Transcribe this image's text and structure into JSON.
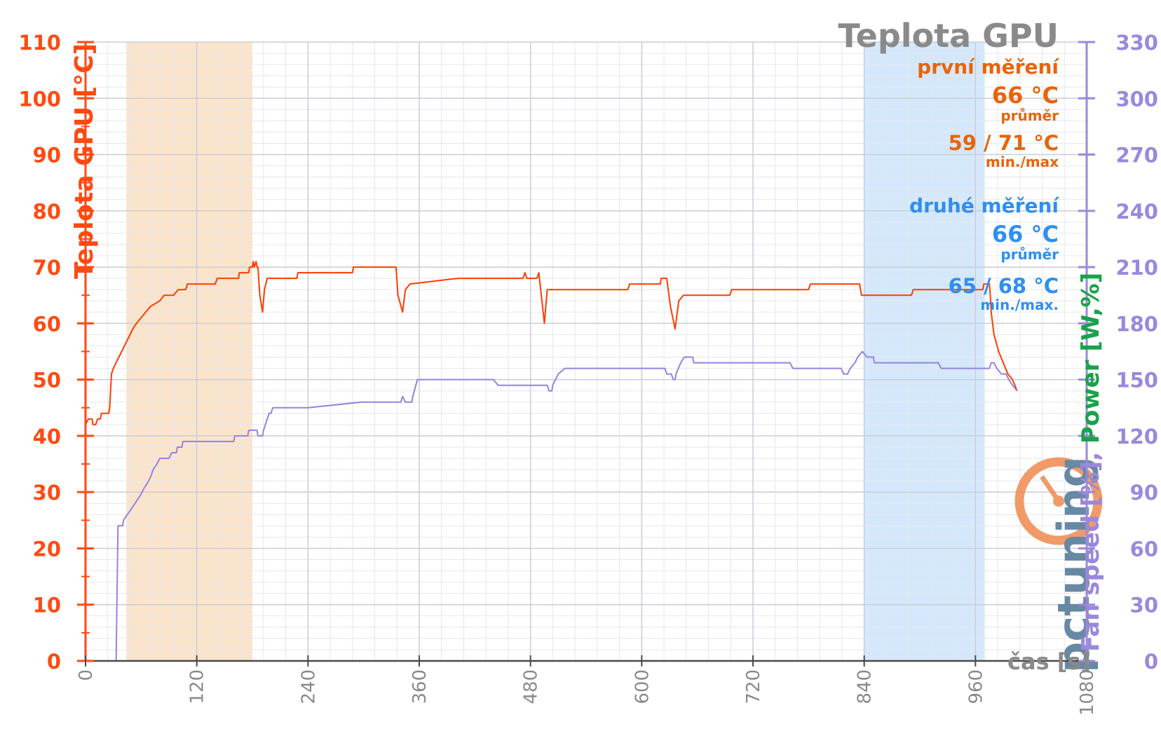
{
  "chart_data": {
    "type": "line",
    "title": "Teplota GPU",
    "xlabel": "čas [s]",
    "ylabel": "Teplota GPU [°C]",
    "y2label": {
      "fan": "Fan speed [%], ",
      "power": "Power [W,%]"
    },
    "xlim": [
      0,
      1080
    ],
    "ylim": [
      0,
      110
    ],
    "y2lim": [
      0,
      330
    ],
    "x_ticks": [
      0,
      120,
      240,
      360,
      480,
      600,
      720,
      840,
      960,
      1080
    ],
    "y_ticks": [
      0,
      10,
      20,
      30,
      40,
      50,
      60,
      70,
      80,
      90,
      100,
      110
    ],
    "y2_ticks": [
      0,
      30,
      60,
      90,
      120,
      150,
      180,
      210,
      240,
      270,
      300,
      330
    ],
    "grid": true,
    "highlight_ranges": [
      {
        "name": "první měření",
        "x": [
          44,
          180
        ],
        "color": "#fbe4cc"
      },
      {
        "name": "druhé měření",
        "x": [
          840,
          970
        ],
        "color": "#d5e8fb"
      }
    ],
    "annotations": {
      "first": {
        "label": "první měření",
        "avg": "66 °C",
        "avg_label": "průměr",
        "minmax": "59 / 71 °C",
        "minmax_label": "min./max",
        "color": "#e8640a"
      },
      "second": {
        "label": "druhé měření",
        "avg": "66 °C",
        "avg_label": "průměr",
        "minmax": "65 / 68 °C",
        "minmax_label": "min./max.",
        "color": "#2e8ff0"
      }
    },
    "series": [
      {
        "axis": "left",
        "color": "#ff3c00",
        "points": [
          [
            0,
            42
          ],
          [
            3,
            43
          ],
          [
            7,
            43
          ],
          [
            8,
            42
          ],
          [
            11,
            42
          ],
          [
            13,
            43
          ],
          [
            16,
            43
          ],
          [
            17,
            44
          ],
          [
            25,
            44
          ],
          [
            26,
            45
          ],
          [
            27,
            48
          ],
          [
            28,
            51
          ],
          [
            30,
            52
          ],
          [
            33,
            53
          ],
          [
            36,
            54
          ],
          [
            39,
            55
          ],
          [
            42,
            56
          ],
          [
            45,
            57
          ],
          [
            48,
            58
          ],
          [
            51,
            59
          ],
          [
            55,
            60
          ],
          [
            60,
            61
          ],
          [
            65,
            62
          ],
          [
            70,
            63
          ],
          [
            75,
            63.5
          ],
          [
            80,
            64
          ],
          [
            85,
            65
          ],
          [
            95,
            65
          ],
          [
            100,
            66
          ],
          [
            108,
            66
          ],
          [
            110,
            67
          ],
          [
            140,
            67
          ],
          [
            142,
            68
          ],
          [
            165,
            68
          ],
          [
            166,
            69
          ],
          [
            176,
            69
          ],
          [
            177,
            70
          ],
          [
            180,
            70
          ],
          [
            181,
            71
          ],
          [
            182,
            70
          ],
          [
            184,
            71
          ],
          [
            185,
            70
          ],
          [
            186,
            70
          ],
          [
            188,
            65
          ],
          [
            191,
            62
          ],
          [
            193,
            66
          ],
          [
            196,
            68
          ],
          [
            228,
            68
          ],
          [
            229,
            69
          ],
          [
            288,
            69
          ],
          [
            289,
            70
          ],
          [
            335,
            70
          ],
          [
            337,
            65
          ],
          [
            342,
            62
          ],
          [
            345,
            66
          ],
          [
            350,
            67
          ],
          [
            402,
            68
          ],
          [
            472,
            68
          ],
          [
            474,
            69
          ],
          [
            476,
            68
          ],
          [
            487,
            68
          ],
          [
            489,
            69
          ],
          [
            491,
            66
          ],
          [
            495,
            60
          ],
          [
            498,
            66
          ],
          [
            502,
            66
          ],
          [
            585,
            66
          ],
          [
            587,
            67
          ],
          [
            620,
            67
          ],
          [
            621,
            68
          ],
          [
            627,
            68
          ],
          [
            631,
            63
          ],
          [
            636,
            59
          ],
          [
            640,
            64
          ],
          [
            645,
            65
          ],
          [
            695,
            65
          ],
          [
            697,
            66
          ],
          [
            780,
            66
          ],
          [
            782,
            67
          ],
          [
            835,
            67
          ],
          [
            837,
            65
          ],
          [
            891,
            65
          ],
          [
            893,
            66
          ],
          [
            968,
            66
          ],
          [
            969,
            67
          ],
          [
            975,
            67
          ],
          [
            976,
            65
          ],
          [
            977,
            62
          ],
          [
            980,
            58
          ],
          [
            985,
            55
          ],
          [
            990,
            53
          ],
          [
            995,
            51
          ],
          [
            1000,
            50
          ],
          [
            1005,
            48
          ]
        ]
      },
      {
        "axis": "right",
        "color": "#9582e0",
        "points": [
          [
            0,
            0
          ],
          [
            33,
            0
          ],
          [
            35,
            72
          ],
          [
            40,
            72
          ],
          [
            41,
            75
          ],
          [
            45,
            78
          ],
          [
            48,
            80
          ],
          [
            52,
            83
          ],
          [
            56,
            86
          ],
          [
            60,
            89
          ],
          [
            63,
            92
          ],
          [
            67,
            95
          ],
          [
            70,
            98
          ],
          [
            73,
            102
          ],
          [
            77,
            105
          ],
          [
            80,
            108
          ],
          [
            85,
            108
          ],
          [
            90,
            108
          ],
          [
            93,
            111
          ],
          [
            98,
            111
          ],
          [
            99,
            114
          ],
          [
            104,
            114
          ],
          [
            105,
            117
          ],
          [
            140,
            117
          ],
          [
            160,
            117
          ],
          [
            161,
            120
          ],
          [
            175,
            120
          ],
          [
            176,
            123
          ],
          [
            185,
            123
          ],
          [
            186,
            120
          ],
          [
            191,
            120
          ],
          [
            192,
            123
          ],
          [
            198,
            132
          ],
          [
            200,
            132
          ],
          [
            202,
            135
          ],
          [
            240,
            135
          ],
          [
            298,
            138
          ],
          [
            340,
            138
          ],
          [
            342,
            141
          ],
          [
            345,
            138
          ],
          [
            352,
            138
          ],
          [
            353,
            141
          ],
          [
            358,
            150
          ],
          [
            440,
            150
          ],
          [
            445,
            147
          ],
          [
            498,
            147
          ],
          [
            500,
            144
          ],
          [
            503,
            144
          ],
          [
            504,
            147
          ],
          [
            510,
            153
          ],
          [
            517,
            156
          ],
          [
            590,
            156
          ],
          [
            625,
            156
          ],
          [
            627,
            153
          ],
          [
            632,
            153
          ],
          [
            634,
            150
          ],
          [
            636,
            150
          ],
          [
            637,
            153
          ],
          [
            642,
            159
          ],
          [
            646,
            162
          ],
          [
            650,
            162
          ],
          [
            655,
            162
          ],
          [
            656,
            159
          ],
          [
            682,
            159
          ],
          [
            760,
            159
          ],
          [
            763,
            156
          ],
          [
            815,
            156
          ],
          [
            818,
            153
          ],
          [
            822,
            153
          ],
          [
            825,
            156
          ],
          [
            830,
            159
          ],
          [
            833,
            162
          ],
          [
            838,
            165
          ],
          [
            843,
            162
          ],
          [
            850,
            162
          ],
          [
            851,
            159
          ],
          [
            860,
            159
          ],
          [
            920,
            159
          ],
          [
            923,
            156
          ],
          [
            975,
            156
          ],
          [
            977,
            159
          ],
          [
            980,
            159
          ],
          [
            983,
            156
          ],
          [
            988,
            153
          ],
          [
            993,
            153
          ],
          [
            996,
            150
          ],
          [
            1000,
            147
          ],
          [
            1005,
            144
          ]
        ]
      }
    ]
  },
  "watermark": "pctuning"
}
